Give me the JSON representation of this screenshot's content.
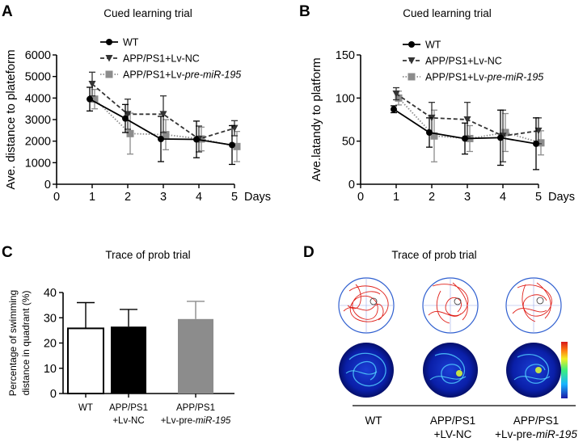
{
  "panels": {
    "A": {
      "letter": "A",
      "title": "Cued learning trial"
    },
    "B": {
      "letter": "B",
      "title": "Cued learning trial"
    },
    "C": {
      "letter": "C",
      "title": "Trace of prob trial"
    },
    "D": {
      "letter": "D",
      "title": "Trace of prob trial",
      "groups": [
        {
          "line1": "WT",
          "line2": "",
          "line2_italic": ""
        },
        {
          "line1": "APP/PS1",
          "line2": "+LV-NC",
          "line2_italic": ""
        },
        {
          "line1": "APP/PS1",
          "line2": "+Lv-pre-",
          "line2_italic": "miR-195"
        }
      ]
    }
  },
  "colors": {
    "wt": "#000000",
    "nc": "#333333",
    "mir": "#8c8c8c",
    "axis": "#000000",
    "track": "#e0201a",
    "pool": "#3060d0"
  },
  "chart_data": [
    {
      "id": "A",
      "type": "line",
      "title": "Cued learning trial",
      "xlabel": "Days",
      "ylabel": "Ave. distance to plateform",
      "xlim": [
        0,
        5
      ],
      "ylim": [
        0,
        6000
      ],
      "xticks": [
        0,
        1,
        2,
        3,
        4,
        5
      ],
      "yticks": [
        0,
        1000,
        2000,
        3000,
        4000,
        5000,
        6000
      ],
      "x": [
        1,
        2,
        3,
        4,
        5
      ],
      "series": [
        {
          "name": "WT",
          "name_prefix": "WT",
          "name_italic": "",
          "values": [
            3950,
            3050,
            2100,
            2080,
            1820
          ],
          "err": [
            550,
            650,
            1050,
            850,
            900
          ]
        },
        {
          "name": "APP/PS1+Lv-NC",
          "name_prefix": "APP/PS1+Lv-NC",
          "name_italic": "",
          "values": [
            4650,
            3250,
            3250,
            2100,
            2600
          ],
          "err": [
            550,
            700,
            850,
            600,
            350
          ]
        },
        {
          "name": "APP/PS1+Lv-pre-miR-195",
          "name_prefix": "APP/PS1+Lv-",
          "name_italic": "pre-miR-195",
          "values": [
            3950,
            2350,
            2300,
            2100,
            1750
          ],
          "err": [
            450,
            950,
            700,
            550,
            700
          ]
        }
      ]
    },
    {
      "id": "B",
      "type": "line",
      "title": "Cued learning trial",
      "xlabel": "Days",
      "ylabel": "Ave.latandy to platform",
      "xlim": [
        0,
        5
      ],
      "ylim": [
        0,
        150
      ],
      "xticks": [
        0,
        1,
        2,
        3,
        4,
        5
      ],
      "yticks": [
        0,
        50,
        100,
        150
      ],
      "x": [
        1,
        2,
        3,
        4,
        5
      ],
      "series": [
        {
          "name": "WT",
          "name_prefix": "WT",
          "name_italic": "",
          "values": [
            87,
            60,
            53,
            54,
            47
          ],
          "err": [
            4,
            17,
            18,
            32,
            30
          ]
        },
        {
          "name": "APP/PS1+Lv-NC",
          "name_prefix": "APP/PS1+Lv-NC",
          "name_italic": "",
          "values": [
            105,
            77,
            75,
            56,
            62
          ],
          "err": [
            7,
            18,
            20,
            30,
            15
          ]
        },
        {
          "name": "APP/PS1+Lv-pre-miR-195",
          "name_prefix": "APP/PS1+Lv-",
          "name_italic": "pre-miR-195",
          "values": [
            100,
            56,
            53,
            60,
            48
          ],
          "err": [
            8,
            30,
            15,
            22,
            14
          ]
        }
      ]
    },
    {
      "id": "C",
      "type": "bar",
      "title": "Trace of prob trial",
      "ylabel_line1": "Percentage of swimming",
      "ylabel_line2": "distance in quadrant (%)",
      "ylim": [
        0,
        40
      ],
      "yticks": [
        0,
        10,
        20,
        30,
        40
      ],
      "categories": [
        {
          "line1": "WT",
          "line2": "",
          "italic": ""
        },
        {
          "line1": "APP/PS1",
          "line2": "+Lv-NC",
          "italic": ""
        },
        {
          "line1": "APP/PS1",
          "line2": "+Lv-pre-",
          "italic": "miR-195"
        }
      ],
      "values": [
        25.8,
        26.5,
        29.5
      ],
      "err": [
        10.2,
        6.8,
        7.0
      ],
      "fills": [
        "#ffffff",
        "#000000",
        "#8c8c8c"
      ]
    }
  ]
}
